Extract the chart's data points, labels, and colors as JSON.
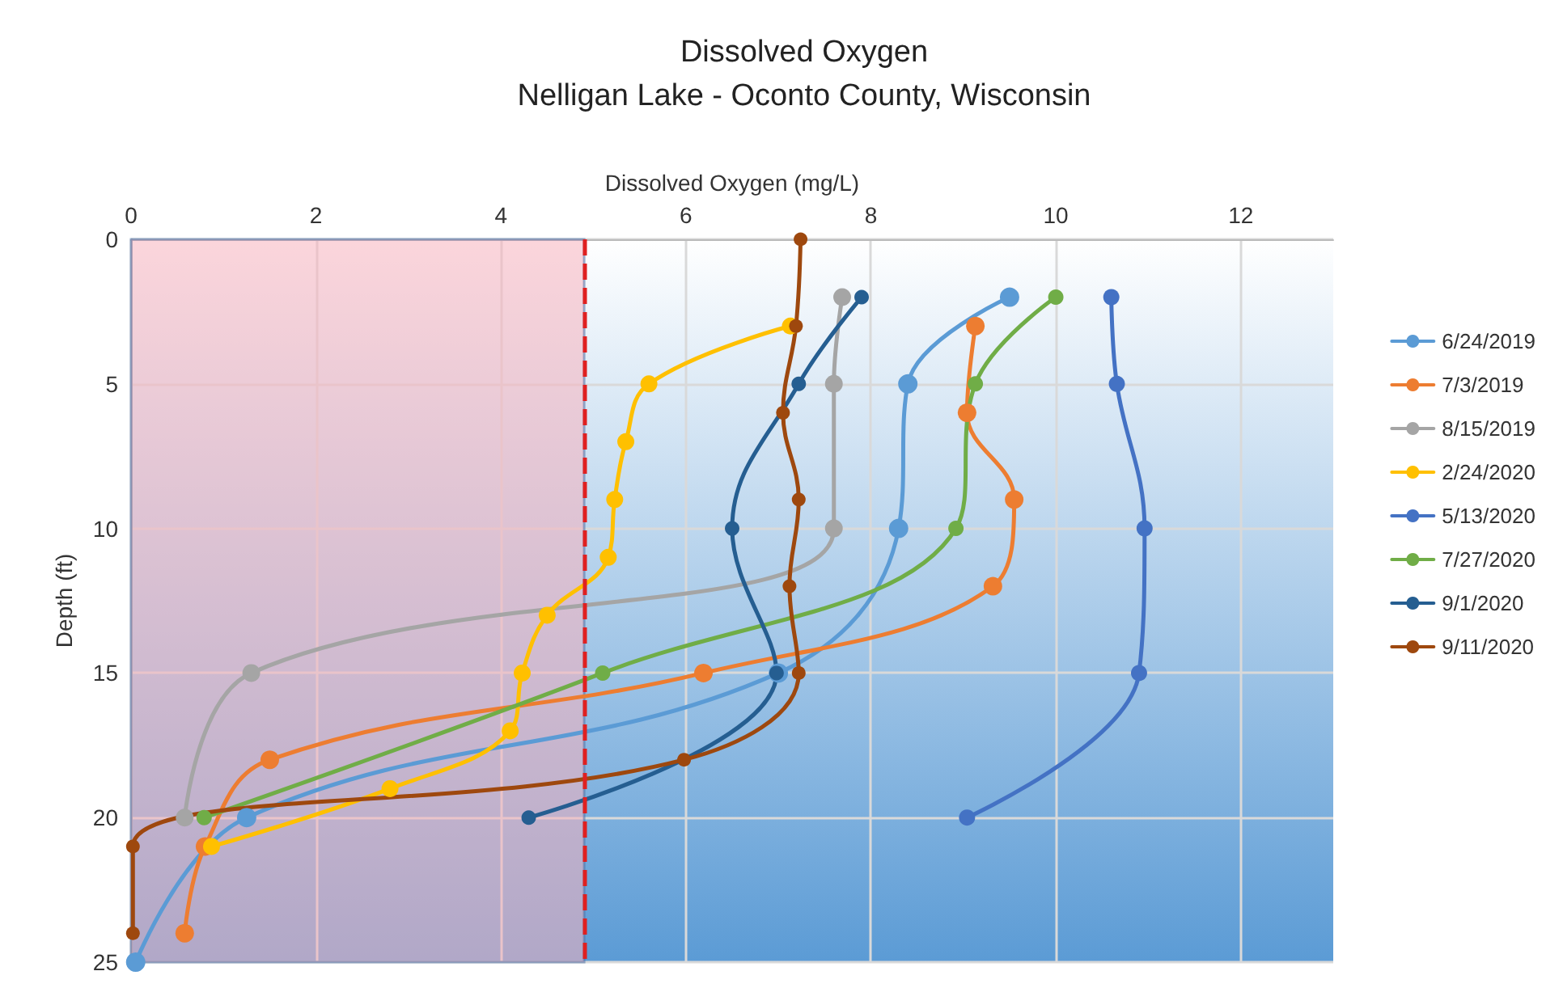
{
  "chart_data": {
    "type": "line",
    "title": "Dissolved Oxygen",
    "subtitle": "Nelligan Lake - Oconto County, Wisconsin",
    "xlabel": "Dissolved Oxygen (mg/L)",
    "ylabel": "Depth (ft)",
    "xlim": [
      0,
      13
    ],
    "xticks": [
      0,
      2,
      4,
      6,
      8,
      10,
      12
    ],
    "ylim": [
      25,
      0
    ],
    "yticks": [
      0,
      5,
      10,
      15,
      20,
      25
    ],
    "grid": true,
    "legend": "right",
    "marker": "circle",
    "line_style": "solid",
    "ref_lines": [
      {
        "axis": "x",
        "value": 4.9,
        "color": "#e02020",
        "line_style": "dashed"
      }
    ],
    "bands": [
      {
        "axis": "x",
        "from": 0,
        "to": 4.9,
        "color": "#f7b3bd"
      }
    ],
    "series": [
      {
        "name": "6/24/2019",
        "color": "#5b9bd5",
        "x": [
          9.5,
          8.4,
          8.3,
          7.0,
          1.25,
          0.05
        ],
        "values": [
          2,
          5,
          10,
          15,
          20,
          25
        ]
      },
      {
        "name": "7/3/2019",
        "color": "#ed7d31",
        "x": [
          9.13,
          9.04,
          9.55,
          9.32,
          6.19,
          1.5,
          0.8,
          0.58
        ],
        "values": [
          3,
          6,
          9,
          12,
          15,
          18,
          21,
          24
        ]
      },
      {
        "name": "8/15/2019",
        "color": "#a5a5a5",
        "x": [
          7.69,
          7.6,
          7.6,
          1.3,
          0.58
        ],
        "values": [
          2,
          5,
          10,
          15,
          20
        ]
      },
      {
        "name": "2/24/2020",
        "color": "#ffc000",
        "x": [
          7.13,
          5.6,
          5.35,
          5.23,
          5.16,
          4.5,
          4.23,
          4.1,
          2.8,
          0.87
        ],
        "values": [
          3,
          5,
          7,
          9,
          11,
          13,
          15,
          17,
          19,
          21
        ]
      },
      {
        "name": "5/13/2020",
        "color": "#4472c4",
        "x": [
          10.6,
          10.66,
          10.96,
          10.9,
          9.04
        ],
        "values": [
          2,
          5,
          10,
          15,
          20
        ]
      },
      {
        "name": "7/27/2020",
        "color": "#70ad47",
        "x": [
          10.0,
          9.13,
          8.92,
          5.1,
          0.79
        ],
        "values": [
          2,
          5,
          10,
          15,
          20
        ]
      },
      {
        "name": "9/1/2020",
        "color": "#255e91",
        "x": [
          7.9,
          7.22,
          6.5,
          6.98,
          4.3
        ],
        "values": [
          2,
          5,
          10,
          15,
          20
        ]
      },
      {
        "name": "9/11/2020",
        "color": "#9e480e",
        "x": [
          7.24,
          7.19,
          7.05,
          7.22,
          7.12,
          7.22,
          5.98,
          0.02,
          0.02
        ],
        "values": [
          0,
          3,
          6,
          9,
          12,
          15,
          18,
          21,
          24
        ]
      }
    ]
  }
}
